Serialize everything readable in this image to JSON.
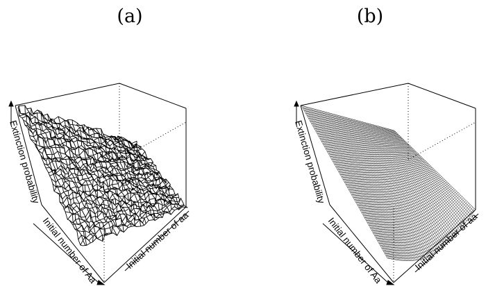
{
  "panels": [
    {
      "label": "(a)"
    },
    {
      "label": "(b)"
    }
  ],
  "chart_data": [
    {
      "type": "surface",
      "panel": "(a)",
      "zlabel": "Extinction probability",
      "xlabel": "Initial number of Aa",
      "ylabel": "Initial number of aa",
      "style": "noisy wireframe",
      "description_of_shape": "simulated surface, highest at back-left corner, decreasing roughly linearly towards front-right corner",
      "grid": false
    },
    {
      "type": "surface",
      "panel": "(b)",
      "zlabel": "Extinction probability",
      "xlabel": "Initial number of Aa",
      "ylabel": "Initial number of aa",
      "style": "smooth dense wireframe",
      "grid": false
    }
  ]
}
